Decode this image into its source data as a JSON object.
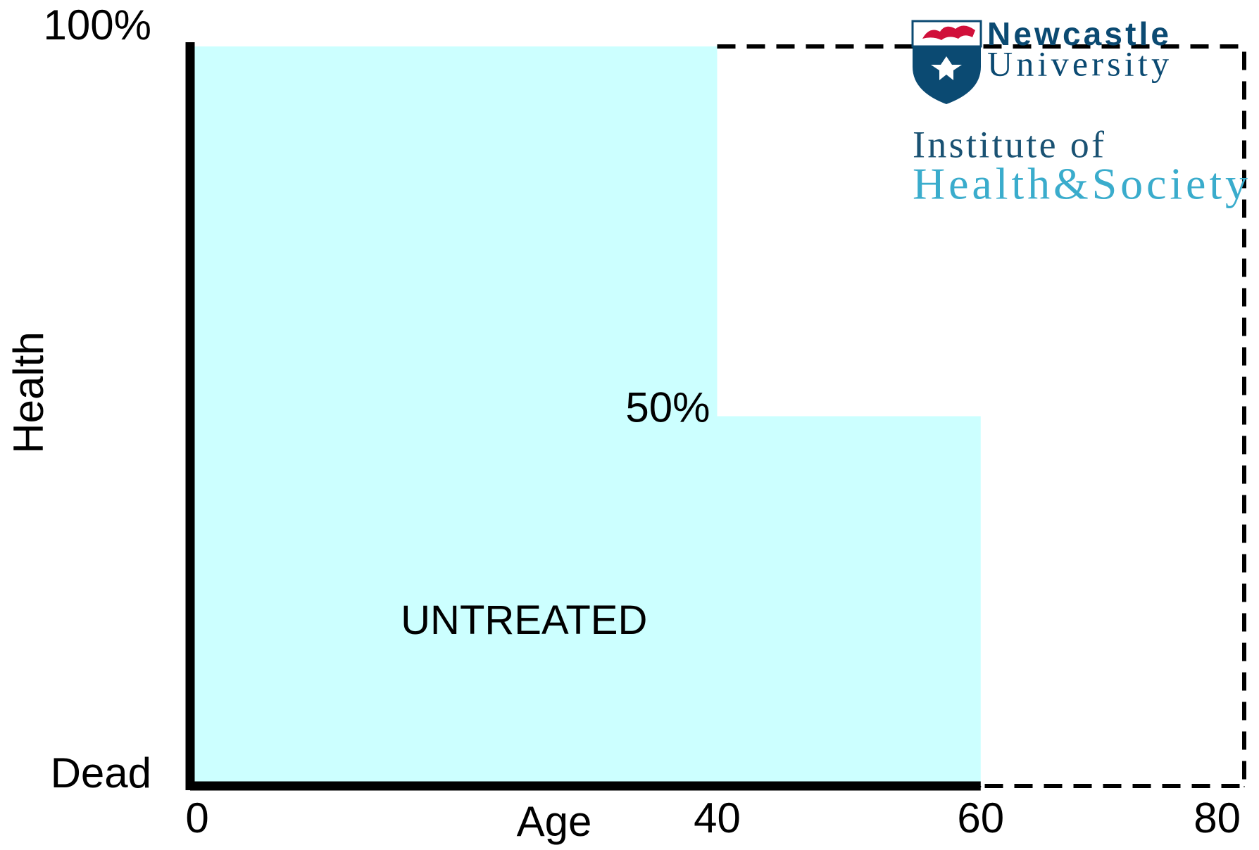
{
  "chart_data": {
    "type": "histogram",
    "x_label": "Age",
    "y_label": "Health",
    "bins": [
      0,
      40,
      60
    ],
    "series": [
      {
        "name": "UNTREATED",
        "color": "#ccffff",
        "values": [
          100,
          50
        ]
      }
    ],
    "annotations": [
      {
        "text": "50%",
        "x": 40,
        "y": 50
      }
    ],
    "reference": {
      "style": "dashed",
      "color": "#000000",
      "x": [
        40,
        80,
        80,
        60
      ],
      "y": [
        100,
        100,
        0,
        0
      ]
    },
    "xlim": [
      0,
      80
    ],
    "xticks": [
      0,
      40,
      60,
      80
    ],
    "ylim": [
      0,
      100
    ],
    "yticks": [
      {
        "value": 0,
        "label": "Dead"
      },
      {
        "value": 100,
        "label": "100%"
      }
    ]
  },
  "logo": {
    "university": [
      "Newcastle",
      "University"
    ],
    "institute": [
      "Institute of",
      "Health&Society"
    ]
  }
}
